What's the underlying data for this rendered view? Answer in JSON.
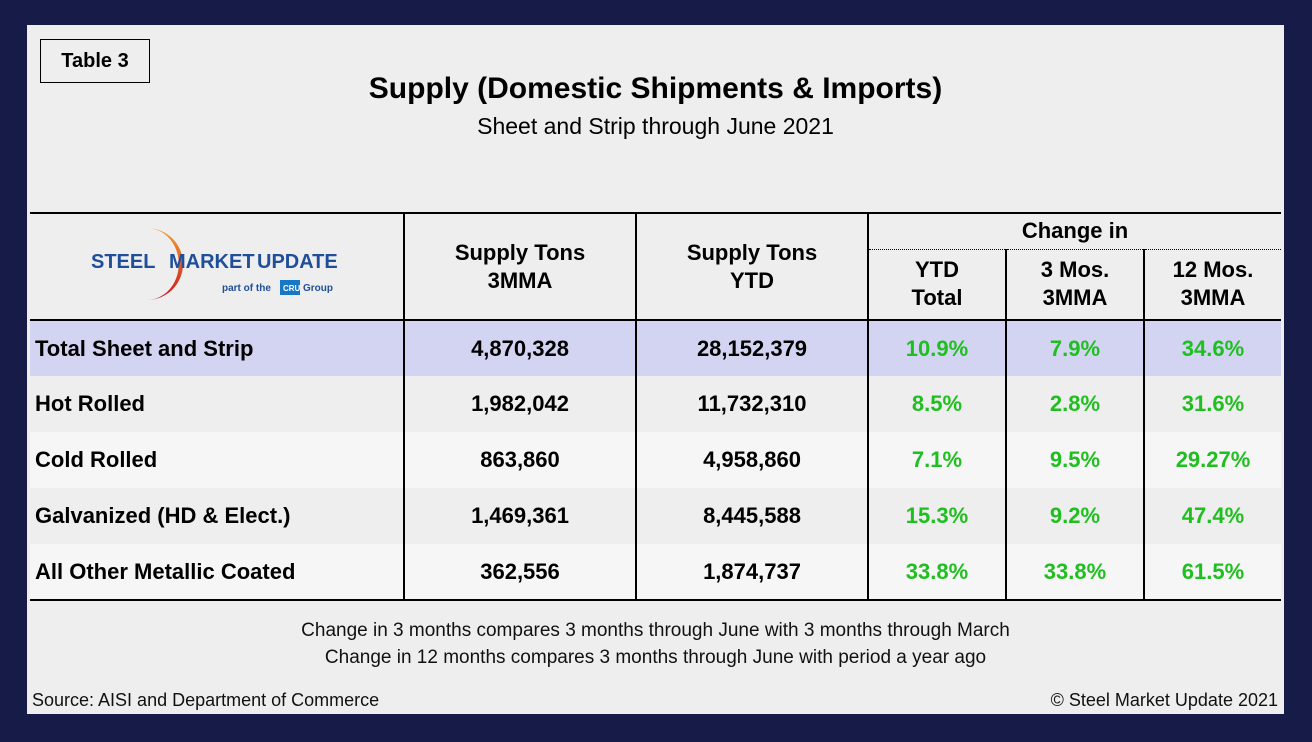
{
  "tag": "Table 3",
  "title": "Supply (Domestic Shipments & Imports)",
  "subtitle": "Sheet and Strip through June 2021",
  "logo": {
    "line1a": "STEEL",
    "line1b": "MARKET",
    "line1c": "UPDATE",
    "line2a": "part of the",
    "cru": "CRU",
    "line2b": "Group"
  },
  "headers": {
    "supply_3mma": [
      "Supply Tons",
      "3MMA"
    ],
    "supply_ytd": [
      "Supply Tons",
      "YTD"
    ],
    "change_in": "Change in",
    "ytd_total": [
      "YTD",
      "Total"
    ],
    "three_mos": [
      "3 Mos.",
      "3MMA"
    ],
    "twelve_mos": [
      "12 Mos.",
      "3MMA"
    ]
  },
  "rows": [
    {
      "name": "Total Sheet and Strip",
      "s3": "4,870,328",
      "ytd": "28,152,379",
      "c_ytd": "10.9%",
      "c3": "7.9%",
      "c12": "34.6%"
    },
    {
      "name": "Hot Rolled",
      "s3": "1,982,042",
      "ytd": "11,732,310",
      "c_ytd": "8.5%",
      "c3": "2.8%",
      "c12": "31.6%"
    },
    {
      "name": "Cold Rolled",
      "s3": "863,860",
      "ytd": "4,958,860",
      "c_ytd": "7.1%",
      "c3": "9.5%",
      "c12": "29.27%"
    },
    {
      "name": "Galvanized (HD & Elect.)",
      "s3": "1,469,361",
      "ytd": "8,445,588",
      "c_ytd": "15.3%",
      "c3": "9.2%",
      "c12": "47.4%"
    },
    {
      "name": "All Other Metallic Coated",
      "s3": "362,556",
      "ytd": "1,874,737",
      "c_ytd": "33.8%",
      "c3": "33.8%",
      "c12": "61.5%"
    }
  ],
  "notes": [
    "Change in 3 months compares 3 months through June with 3 months through March",
    "Change in 12 months compares 3 months through June with period a year ago"
  ],
  "source": "Source: AISI and Department of Commerce",
  "copyright": "© Steel Market Update 2021",
  "colors": {
    "frame": "#161b47",
    "highlight_row": "#d2d4f2",
    "positive": "#1fbf1f"
  }
}
